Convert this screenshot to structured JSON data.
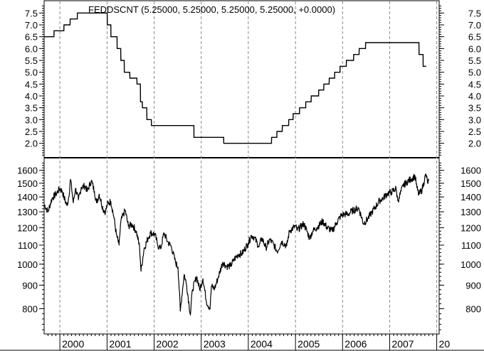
{
  "chart_data": [
    {
      "type": "line",
      "title": "FEDDSCNT (5.25000, 5.25000, 5.25000, 5.25000, +0.0000)",
      "series": [
        {
          "values": [
            [
              "1999-09-01",
              6.5
            ],
            [
              "1999-11-16",
              6.5
            ],
            [
              "1999-11-17",
              6.75
            ],
            [
              "2000-02-01",
              6.75
            ],
            [
              "2000-02-02",
              7.0
            ],
            [
              "2000-03-20",
              7.0
            ],
            [
              "2000-03-21",
              7.25
            ],
            [
              "2000-05-15",
              7.25
            ],
            [
              "2000-05-16",
              7.5
            ],
            [
              "2001-01-02",
              7.5
            ],
            [
              "2001-01-03",
              7.0
            ],
            [
              "2001-01-30",
              7.0
            ],
            [
              "2001-01-31",
              6.5
            ],
            [
              "2001-03-19",
              6.5
            ],
            [
              "2001-03-20",
              6.0
            ],
            [
              "2001-04-17",
              6.0
            ],
            [
              "2001-04-18",
              5.5
            ],
            [
              "2001-05-14",
              5.5
            ],
            [
              "2001-05-15",
              5.0
            ],
            [
              "2001-06-26",
              5.0
            ],
            [
              "2001-06-27",
              4.75
            ],
            [
              "2001-08-20",
              4.75
            ],
            [
              "2001-08-21",
              4.5
            ],
            [
              "2001-09-16",
              4.5
            ],
            [
              "2001-09-17",
              3.75
            ],
            [
              "2001-10-01",
              3.75
            ],
            [
              "2001-10-02",
              3.5
            ],
            [
              "2001-11-05",
              3.5
            ],
            [
              "2001-11-06",
              3.0
            ],
            [
              "2001-12-10",
              3.0
            ],
            [
              "2001-12-11",
              2.75
            ],
            [
              "2002-11-05",
              2.75
            ],
            [
              "2002-11-06",
              2.25
            ],
            [
              "2003-06-24",
              2.25
            ],
            [
              "2003-06-25",
              2.0
            ],
            [
              "2004-06-29",
              2.0
            ],
            [
              "2004-06-30",
              2.25
            ],
            [
              "2004-08-09",
              2.25
            ],
            [
              "2004-08-10",
              2.5
            ],
            [
              "2004-09-20",
              2.5
            ],
            [
              "2004-09-21",
              2.75
            ],
            [
              "2004-11-09",
              2.75
            ],
            [
              "2004-11-10",
              3.0
            ],
            [
              "2004-12-13",
              3.0
            ],
            [
              "2004-12-14",
              3.25
            ],
            [
              "2005-02-01",
              3.25
            ],
            [
              "2005-02-02",
              3.5
            ],
            [
              "2005-03-21",
              3.5
            ],
            [
              "2005-03-22",
              3.75
            ],
            [
              "2005-05-02",
              3.75
            ],
            [
              "2005-05-03",
              4.0
            ],
            [
              "2005-06-29",
              4.0
            ],
            [
              "2005-06-30",
              4.25
            ],
            [
              "2005-08-08",
              4.25
            ],
            [
              "2005-08-09",
              4.5
            ],
            [
              "2005-09-19",
              4.5
            ],
            [
              "2005-09-20",
              4.75
            ],
            [
              "2005-10-31",
              4.75
            ],
            [
              "2005-11-01",
              5.0
            ],
            [
              "2005-12-12",
              5.0
            ],
            [
              "2005-12-13",
              5.25
            ],
            [
              "2006-01-30",
              5.25
            ],
            [
              "2006-01-31",
              5.5
            ],
            [
              "2006-03-27",
              5.5
            ],
            [
              "2006-03-28",
              5.75
            ],
            [
              "2006-05-09",
              5.75
            ],
            [
              "2006-05-10",
              6.0
            ],
            [
              "2006-06-28",
              6.0
            ],
            [
              "2006-06-29",
              6.25
            ],
            [
              "2007-08-16",
              6.25
            ],
            [
              "2007-08-17",
              5.75
            ],
            [
              "2007-09-17",
              5.75
            ],
            [
              "2007-09-18",
              5.25
            ],
            [
              "2007-10-12",
              5.25
            ]
          ]
        }
      ],
      "x_range": [
        "1999-09-01",
        "2008-01-20"
      ],
      "ylim": [
        1.45,
        7.9
      ],
      "yticks": [
        "2.0",
        "2.5",
        "3.0",
        "3.5",
        "4.0",
        "4.5",
        "5.0",
        "5.5",
        "6.0",
        "6.5",
        "7.0",
        "7.5"
      ],
      "grid": "vertical dashed at year starts"
    },
    {
      "type": "line",
      "series": [
        {
          "values": [
            [
              "1999-09-01",
              1350
            ],
            [
              "1999-10-01",
              1300
            ],
            [
              "1999-11-01",
              1390
            ],
            [
              "1999-12-01",
              1420
            ],
            [
              "2000-01-01",
              1460
            ],
            [
              "2000-01-20",
              1440
            ],
            [
              "2000-02-01",
              1400
            ],
            [
              "2000-02-25",
              1340
            ],
            [
              "2000-03-10",
              1400
            ],
            [
              "2000-03-24",
              1530
            ],
            [
              "2000-04-14",
              1360
            ],
            [
              "2000-05-01",
              1460
            ],
            [
              "2000-05-24",
              1380
            ],
            [
              "2000-06-15",
              1470
            ],
            [
              "2000-07-15",
              1480
            ],
            [
              "2000-08-01",
              1440
            ],
            [
              "2000-09-01",
              1520
            ],
            [
              "2000-09-25",
              1440
            ],
            [
              "2000-10-12",
              1360
            ],
            [
              "2000-11-01",
              1420
            ],
            [
              "2000-11-30",
              1320
            ],
            [
              "2000-12-20",
              1300
            ],
            [
              "2001-01-03",
              1350
            ],
            [
              "2001-01-30",
              1370
            ],
            [
              "2001-02-22",
              1270
            ],
            [
              "2001-03-14",
              1160
            ],
            [
              "2001-04-04",
              1100
            ],
            [
              "2001-04-18",
              1240
            ],
            [
              "2001-05-21",
              1310
            ],
            [
              "2001-06-15",
              1210
            ],
            [
              "2001-07-15",
              1220
            ],
            [
              "2001-08-15",
              1180
            ],
            [
              "2001-09-10",
              1090
            ],
            [
              "2001-09-21",
              965
            ],
            [
              "2001-10-15",
              1080
            ],
            [
              "2001-11-15",
              1140
            ],
            [
              "2001-12-05",
              1170
            ],
            [
              "2002-01-07",
              1160
            ],
            [
              "2002-01-29",
              1100
            ],
            [
              "2002-02-20",
              1080
            ],
            [
              "2002-03-19",
              1170
            ],
            [
              "2002-04-15",
              1120
            ],
            [
              "2002-05-15",
              1090
            ],
            [
              "2002-06-15",
              1010
            ],
            [
              "2002-07-05",
              985
            ],
            [
              "2002-07-23",
              790
            ],
            [
              "2002-08-22",
              950
            ],
            [
              "2002-09-10",
              900
            ],
            [
              "2002-10-09",
              775
            ],
            [
              "2002-10-25",
              880
            ],
            [
              "2002-11-27",
              940
            ],
            [
              "2002-12-20",
              880
            ],
            [
              "2003-01-14",
              930
            ],
            [
              "2003-02-10",
              830
            ],
            [
              "2003-03-11",
              800
            ],
            [
              "2003-03-21",
              895
            ],
            [
              "2003-04-15",
              885
            ],
            [
              "2003-05-15",
              940
            ],
            [
              "2003-06-17",
              1010
            ],
            [
              "2003-07-15",
              990
            ],
            [
              "2003-08-15",
              990
            ],
            [
              "2003-09-15",
              1025
            ],
            [
              "2003-10-15",
              1050
            ],
            [
              "2003-11-15",
              1055
            ],
            [
              "2003-12-31",
              1110
            ],
            [
              "2004-01-26",
              1155
            ],
            [
              "2004-02-15",
              1145
            ],
            [
              "2004-03-24",
              1090
            ],
            [
              "2004-04-15",
              1140
            ],
            [
              "2004-05-17",
              1085
            ],
            [
              "2004-06-15",
              1130
            ],
            [
              "2004-07-15",
              1105
            ],
            [
              "2004-08-12",
              1065
            ],
            [
              "2004-09-15",
              1120
            ],
            [
              "2004-10-25",
              1095
            ],
            [
              "2004-11-15",
              1180
            ],
            [
              "2004-12-31",
              1210
            ],
            [
              "2005-01-15",
              1185
            ],
            [
              "2005-03-07",
              1225
            ],
            [
              "2005-04-20",
              1140
            ],
            [
              "2005-05-15",
              1180
            ],
            [
              "2005-06-15",
              1200
            ],
            [
              "2005-08-01",
              1240
            ],
            [
              "2005-08-30",
              1205
            ],
            [
              "2005-10-13",
              1180
            ],
            [
              "2005-11-15",
              1230
            ],
            [
              "2005-12-15",
              1270
            ],
            [
              "2006-01-15",
              1285
            ],
            [
              "2006-02-15",
              1285
            ],
            [
              "2006-03-15",
              1305
            ],
            [
              "2006-05-05",
              1325
            ],
            [
              "2006-06-13",
              1225
            ],
            [
              "2006-07-15",
              1255
            ],
            [
              "2006-08-15",
              1295
            ],
            [
              "2006-09-15",
              1335
            ],
            [
              "2006-10-15",
              1375
            ],
            [
              "2006-11-15",
              1395
            ],
            [
              "2006-12-15",
              1425
            ],
            [
              "2007-01-15",
              1435
            ],
            [
              "2007-02-20",
              1460
            ],
            [
              "2007-03-05",
              1375
            ],
            [
              "2007-03-15",
              1395
            ],
            [
              "2007-04-15",
              1480
            ],
            [
              "2007-05-15",
              1510
            ],
            [
              "2007-06-15",
              1530
            ],
            [
              "2007-07-17",
              1555
            ],
            [
              "2007-08-01",
              1465
            ],
            [
              "2007-08-15",
              1415
            ],
            [
              "2007-09-10",
              1455
            ],
            [
              "2007-10-09",
              1570
            ],
            [
              "2007-10-22",
              1505
            ],
            [
              "2007-11-01",
              1520
            ]
          ]
        }
      ],
      "x_range": [
        "1999-09-01",
        "2008-01-20"
      ],
      "ylim": [
        710,
        1680
      ],
      "yticks": [
        "800",
        "900",
        "1000",
        "1100",
        "1200",
        "1300",
        "1400",
        "1500",
        "1600"
      ],
      "yscale": "log",
      "grid": "vertical dashed at year starts"
    }
  ],
  "x_axis": {
    "labels": [
      "2000",
      "2001",
      "2002",
      "2003",
      "2004",
      "2005",
      "2006",
      "2007",
      "20"
    ]
  }
}
